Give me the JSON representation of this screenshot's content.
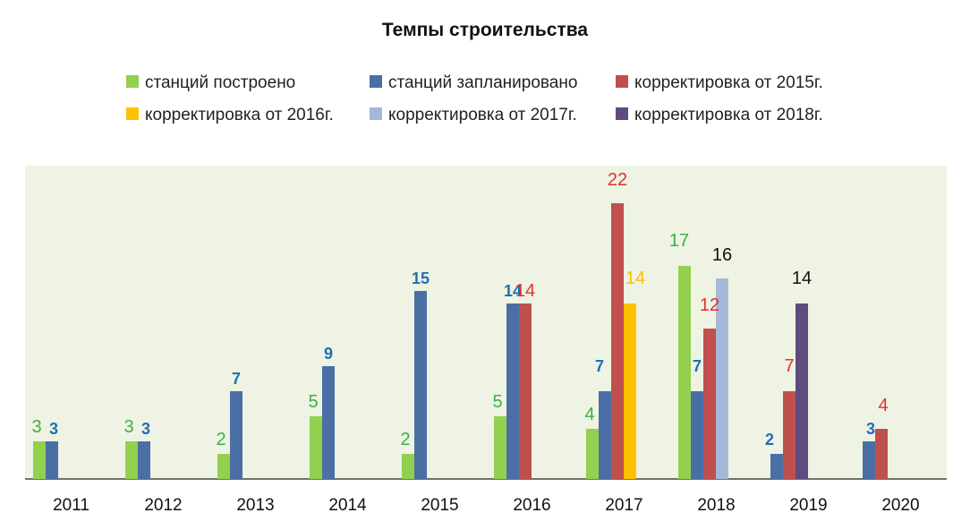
{
  "chart_data": {
    "type": "bar",
    "title": "Темпы строительства",
    "xlabel": "",
    "ylabel": "",
    "ylim": [
      0,
      25
    ],
    "grid": false,
    "legend_position": "top",
    "categories": [
      "2011",
      "2012",
      "2013",
      "2014",
      "2015",
      "2016",
      "2017",
      "2018",
      "2019",
      "2020"
    ],
    "series": [
      {
        "name": "станций построено",
        "color": "#92d050",
        "label_color": "#3cb043",
        "values": [
          3,
          3,
          2,
          5,
          2,
          5,
          4,
          17,
          null,
          null
        ]
      },
      {
        "name": "станций запланировано",
        "color": "#4a6fa5",
        "label_color": "#1f6fb5",
        "values": [
          3,
          3,
          7,
          9,
          15,
          14,
          7,
          7,
          2,
          3
        ]
      },
      {
        "name": "корректировка от 2015г.",
        "color": "#c0504d",
        "label_color": "#e03030",
        "values": [
          null,
          null,
          null,
          null,
          null,
          14,
          22,
          12,
          7,
          4
        ]
      },
      {
        "name": "корректировка от 2016г.",
        "color": "#ffc000",
        "label_color": "#ffc000",
        "values": [
          null,
          null,
          null,
          null,
          null,
          null,
          14,
          null,
          null,
          null
        ]
      },
      {
        "name": "корректировка от 2017г.",
        "color": "#a5b8d8",
        "label_color": "#111111",
        "values": [
          null,
          null,
          null,
          null,
          null,
          null,
          null,
          16,
          null,
          null
        ]
      },
      {
        "name": "корректировка от 2018г.",
        "color": "#5f4b7f",
        "label_color": "#111111",
        "values": [
          null,
          null,
          null,
          null,
          null,
          null,
          null,
          null,
          14,
          null
        ]
      }
    ]
  }
}
